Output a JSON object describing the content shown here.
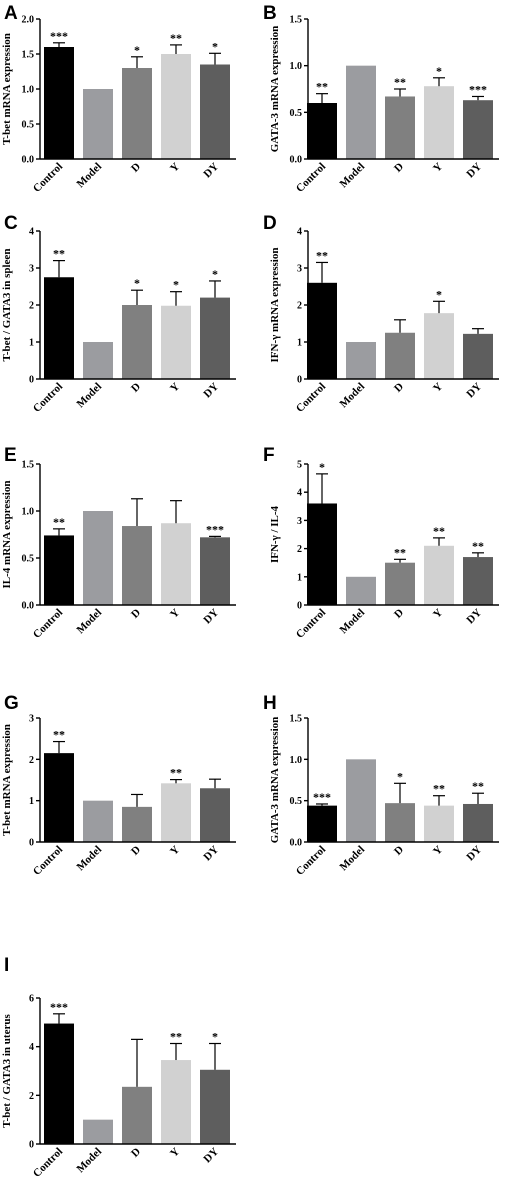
{
  "colors": {
    "Control": "#000000",
    "Model": "#9b9ca0",
    "D": "#808080",
    "Y": "#d1d1d1",
    "DY": "#5e5e5e"
  },
  "chart_data": [
    {
      "panel": "A",
      "type": "bar",
      "ylabel": "T-bet mRNA expression",
      "ylim": [
        0,
        2.0
      ],
      "yticks": [
        "0.0",
        "0.5",
        "1.0",
        "1.5",
        "2.0"
      ],
      "categories": [
        "Control",
        "Model",
        "D",
        "Y",
        "DY"
      ],
      "values": [
        1.6,
        1.0,
        1.3,
        1.5,
        1.35
      ],
      "errors": [
        0.06,
        0,
        0.16,
        0.13,
        0.16
      ],
      "significance": [
        "***",
        "",
        "*",
        "**",
        "*"
      ]
    },
    {
      "panel": "B",
      "type": "bar",
      "ylabel": "GATA-3 mRNA expression",
      "ylim": [
        0,
        1.5
      ],
      "yticks": [
        "0.0",
        "0.5",
        "1.0",
        "1.5"
      ],
      "categories": [
        "Control",
        "Model",
        "D",
        "Y",
        "DY"
      ],
      "values": [
        0.6,
        1.0,
        0.67,
        0.78,
        0.63
      ],
      "errors": [
        0.1,
        0,
        0.08,
        0.09,
        0.04
      ],
      "significance": [
        "**",
        "",
        "**",
        "*",
        "***"
      ]
    },
    {
      "panel": "C",
      "type": "bar",
      "ylabel": "T-bet / GATA3 in spleen",
      "ylim": [
        0,
        4
      ],
      "yticks": [
        "0",
        "1",
        "2",
        "3",
        "4"
      ],
      "categories": [
        "Control",
        "Model",
        "D",
        "Y",
        "DY"
      ],
      "values": [
        2.75,
        1.0,
        2.0,
        1.98,
        2.2
      ],
      "errors": [
        0.45,
        0,
        0.4,
        0.38,
        0.45
      ],
      "significance": [
        "**",
        "",
        "*",
        "*",
        "*"
      ]
    },
    {
      "panel": "D",
      "type": "bar",
      "ylabel": "IFN-γ mRNA expression",
      "ylim": [
        0,
        4
      ],
      "yticks": [
        "0",
        "1",
        "2",
        "3",
        "4"
      ],
      "categories": [
        "Control",
        "Model",
        "D",
        "Y",
        "DY"
      ],
      "values": [
        2.6,
        1.0,
        1.25,
        1.78,
        1.22
      ],
      "errors": [
        0.55,
        0,
        0.35,
        0.32,
        0.14
      ],
      "significance": [
        "**",
        "",
        "",
        "*",
        ""
      ]
    },
    {
      "panel": "E",
      "type": "bar",
      "ylabel": "IL-4 mRNA expression",
      "ylim": [
        0,
        1.5
      ],
      "yticks": [
        "0.0",
        "0.5",
        "1.0",
        "1.5"
      ],
      "categories": [
        "Control",
        "Model",
        "D",
        "Y",
        "DY"
      ],
      "values": [
        0.74,
        1.0,
        0.84,
        0.87,
        0.72
      ],
      "errors": [
        0.07,
        0,
        0.29,
        0.24,
        0.01
      ],
      "significance": [
        "**",
        "",
        "",
        "",
        "***"
      ]
    },
    {
      "panel": "F",
      "type": "bar",
      "ylabel": "IFN-γ / IL-4",
      "ylim": [
        0,
        5
      ],
      "yticks": [
        "0",
        "1",
        "2",
        "3",
        "4",
        "5"
      ],
      "categories": [
        "Control",
        "Model",
        "D",
        "Y",
        "DY"
      ],
      "values": [
        3.6,
        1.0,
        1.5,
        2.1,
        1.7
      ],
      "errors": [
        1.05,
        0,
        0.12,
        0.28,
        0.15
      ],
      "significance": [
        "*",
        "",
        "**",
        "**",
        "**"
      ]
    },
    {
      "panel": "G",
      "type": "bar",
      "ylabel": "T-bet mRNA expression",
      "ylim": [
        0,
        3
      ],
      "yticks": [
        "0",
        "1",
        "2",
        "3"
      ],
      "categories": [
        "Control",
        "Model",
        "D",
        "Y",
        "DY"
      ],
      "values": [
        2.15,
        1.0,
        0.85,
        1.42,
        1.3
      ],
      "errors": [
        0.28,
        0,
        0.3,
        0.09,
        0.22
      ],
      "significance": [
        "**",
        "",
        "",
        "**",
        ""
      ]
    },
    {
      "panel": "H",
      "type": "bar",
      "ylabel": "GATA-3 mRNA expression",
      "ylim": [
        0,
        1.5
      ],
      "yticks": [
        "0.0",
        "0.5",
        "1.0",
        "1.5"
      ],
      "categories": [
        "Control",
        "Model",
        "D",
        "Y",
        "DY"
      ],
      "values": [
        0.44,
        1.0,
        0.47,
        0.44,
        0.46
      ],
      "errors": [
        0.02,
        0,
        0.24,
        0.12,
        0.13
      ],
      "significance": [
        "***",
        "",
        "*",
        "**",
        "**"
      ]
    },
    {
      "panel": "I",
      "type": "bar",
      "ylabel": "T-bet / GATA3 in uterus",
      "ylim": [
        0,
        6
      ],
      "yticks": [
        "0",
        "2",
        "4",
        "6"
      ],
      "categories": [
        "Control",
        "Model",
        "D",
        "Y",
        "DY"
      ],
      "values": [
        4.95,
        1.0,
        2.35,
        3.45,
        3.05
      ],
      "errors": [
        0.4,
        0,
        1.95,
        0.68,
        1.08
      ],
      "significance": [
        "***",
        "",
        "",
        "**",
        "*"
      ]
    }
  ]
}
